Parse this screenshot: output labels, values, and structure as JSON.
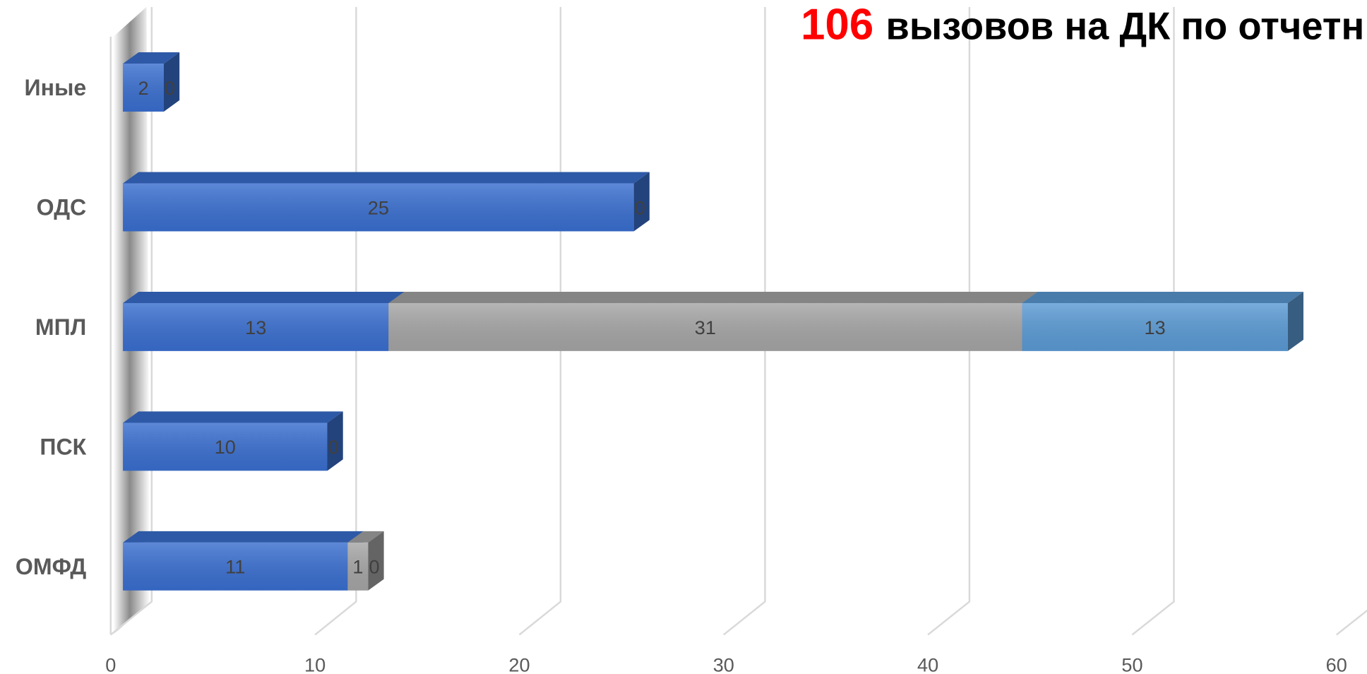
{
  "chart_data": {
    "type": "bar3d_stacked_horizontal",
    "title_number": "106",
    "title_text": "вызовов на ДК по отчетн",
    "categories": [
      "ОМФД",
      "ПСК",
      "МПЛ",
      "ОДС",
      "Иные"
    ],
    "series": [
      {
        "color": "#3a6fd0",
        "values": [
          11,
          10,
          13,
          25,
          2
        ]
      },
      {
        "color": "#a6a6a6",
        "values": [
          1,
          0,
          31,
          0,
          0
        ]
      },
      {
        "color": "#5b9bd5",
        "values": [
          0,
          0,
          13,
          0,
          0
        ]
      }
    ],
    "xlim": [
      0,
      60
    ],
    "xticks": [
      0,
      10,
      20,
      30,
      40,
      50,
      60
    ],
    "grid": true
  }
}
